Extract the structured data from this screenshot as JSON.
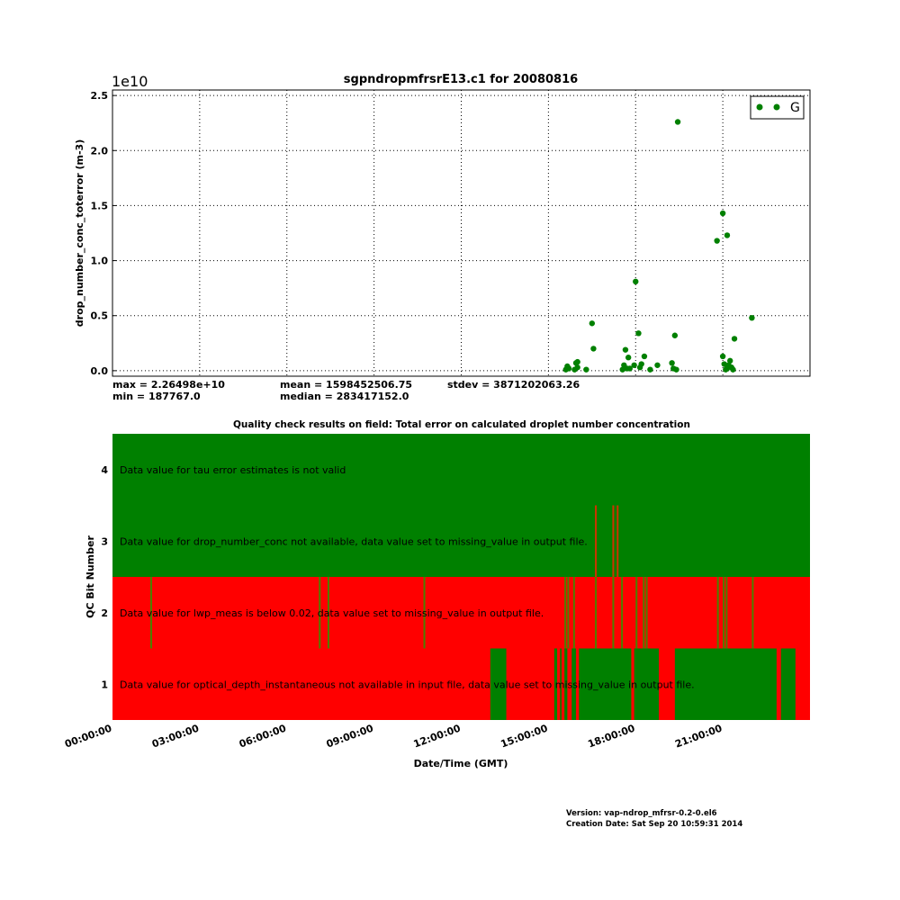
{
  "chart_data": [
    {
      "type": "scatter",
      "title": "sgpndropmfrsrE13.c1 for 20080816",
      "ylabel": "drop_number_conc_toterror (m-3)",
      "y_scale_note": "1e10",
      "ylim": [
        -0.05,
        2.55
      ],
      "y_ticks": [
        0.0,
        0.5,
        1.0,
        1.5,
        2.0,
        2.5
      ],
      "y_tick_labels": [
        "0.0",
        "0.5",
        "1.0",
        "1.5",
        "2.0",
        "2.5"
      ],
      "x_range_hours": [
        0,
        24
      ],
      "grid": true,
      "legend": {
        "position": "top-right",
        "entries": [
          {
            "label": "G",
            "color": "#008000"
          }
        ]
      },
      "series": [
        {
          "name": "G",
          "color": "#008000",
          "x": [
            15.6,
            15.65,
            15.7,
            15.9,
            15.95,
            16.0,
            16.0,
            16.3,
            16.5,
            16.55,
            17.55,
            17.6,
            17.65,
            17.7,
            17.75,
            17.8,
            17.95,
            18.0,
            18.1,
            18.15,
            18.2,
            18.3,
            18.5,
            18.75,
            19.25,
            19.3,
            19.35,
            19.4,
            19.45,
            20.8,
            21.0,
            21.0,
            21.05,
            21.1,
            21.15,
            21.2,
            21.25,
            21.3,
            21.35,
            21.4,
            22.0,
            21.15
          ],
          "y": [
            0.01,
            0.04,
            0.02,
            0.01,
            0.07,
            0.08,
            0.03,
            0.01,
            0.43,
            0.2,
            0.01,
            0.05,
            0.19,
            0.02,
            0.12,
            0.02,
            0.05,
            0.81,
            0.34,
            0.03,
            0.06,
            0.13,
            0.01,
            0.05,
            0.07,
            0.02,
            0.32,
            0.01,
            2.26,
            1.18,
            1.43,
            0.13,
            0.06,
            0.01,
            1.23,
            0.05,
            0.09,
            0.03,
            0.01,
            0.29,
            0.48,
            0.02
          ]
        }
      ]
    },
    {
      "type": "heatmap",
      "title": "Quality check results on field: Total error on calculated droplet number concentration",
      "xlabel": "Date/Time (GMT)",
      "ylabel": "QC Bit Number",
      "y_categories": [
        {
          "bit": "1",
          "label": "Data value for optical_depth_instantaneous not available in input file, data value set to missing_value in output file."
        },
        {
          "bit": "2",
          "label": "Data value for lwp_meas is below 0.02, data value set to missing_value in output file."
        },
        {
          "bit": "3",
          "label": "Data value for drop_number_conc not available, data value set to missing_value in output file."
        },
        {
          "bit": "4",
          "label": "Data value for tau error estimates is not valid"
        }
      ],
      "x_range_hours": [
        0,
        24
      ],
      "x_tick_labels": [
        "00:00:00",
        "03:00:00",
        "06:00:00",
        "09:00:00",
        "12:00:00",
        "15:00:00",
        "18:00:00",
        "21:00:00"
      ],
      "colors": {
        "pass": "#008000",
        "fail": "#ff0000"
      },
      "base_state": {
        "1": "fail",
        "2": "fail",
        "3": "pass",
        "4": "pass"
      },
      "bit1_pass_intervals": [
        [
          13.0,
          13.55
        ],
        [
          15.2,
          15.3
        ],
        [
          15.4,
          15.45
        ],
        [
          15.55,
          15.65
        ],
        [
          15.8,
          15.95
        ],
        [
          16.05,
          17.85
        ],
        [
          17.95,
          18.8
        ],
        [
          19.35,
          22.85
        ],
        [
          23.0,
          23.5
        ]
      ],
      "bit2_pass_marks": [
        1.3,
        7.1,
        7.4,
        10.7,
        15.55,
        15.65,
        15.85,
        16.6,
        17.2,
        17.5,
        18.0,
        18.25,
        18.35,
        20.8,
        21.0,
        21.1,
        22.0
      ],
      "bit3_fail_marks": [
        16.6,
        17.2,
        17.35
      ]
    }
  ],
  "stats": {
    "max": "max = 2.26498e+10",
    "min": "min = 187767.0",
    "mean": "mean = 1598452506.75",
    "median": "median = 283417152.0",
    "stdev": "stdev = 3871202063.26"
  },
  "footer": {
    "version": "Version: vap-ndrop_mfrsr-0.2-0.el6",
    "created": "Creation Date: Sat Sep 20 10:59:31 2014"
  }
}
